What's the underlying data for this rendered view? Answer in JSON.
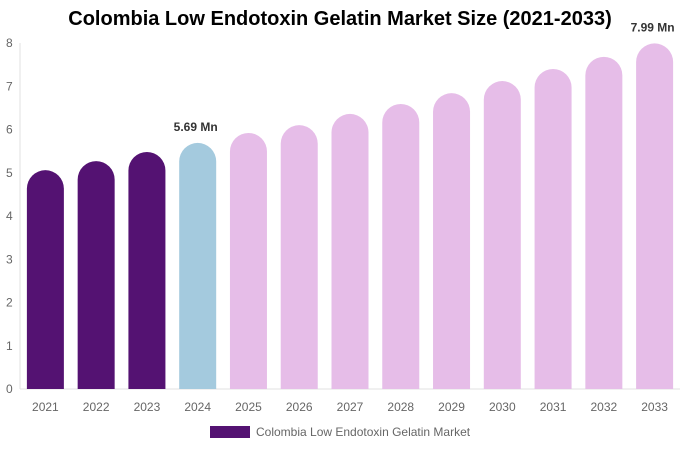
{
  "chart_data": {
    "type": "bar",
    "title": "Colombia Low Endotoxin Gelatin Market Size (2021-2033)",
    "categories": [
      "2021",
      "2022",
      "2023",
      "2024",
      "2025",
      "2026",
      "2027",
      "2028",
      "2029",
      "2030",
      "2031",
      "2032",
      "2033"
    ],
    "series": [
      {
        "name": "Colombia Low Endotoxin Gelatin Market",
        "values": [
          5.06,
          5.27,
          5.48,
          5.69,
          5.92,
          6.1,
          6.36,
          6.59,
          6.84,
          7.12,
          7.4,
          7.68,
          7.99
        ]
      }
    ],
    "data_labels": {
      "2024": "5.69 Mn",
      "2033": "7.99 Mn"
    },
    "ylim": [
      0,
      8
    ],
    "yticks": [
      "0",
      "1",
      "2",
      "3",
      "4",
      "5",
      "6",
      "7",
      "8"
    ],
    "xlabel": "",
    "ylabel": "",
    "grid": false,
    "legend_position": "bottom",
    "colors": {
      "historical": "#541272",
      "current": "#a4cade",
      "forecast": "#e6bde8"
    }
  }
}
